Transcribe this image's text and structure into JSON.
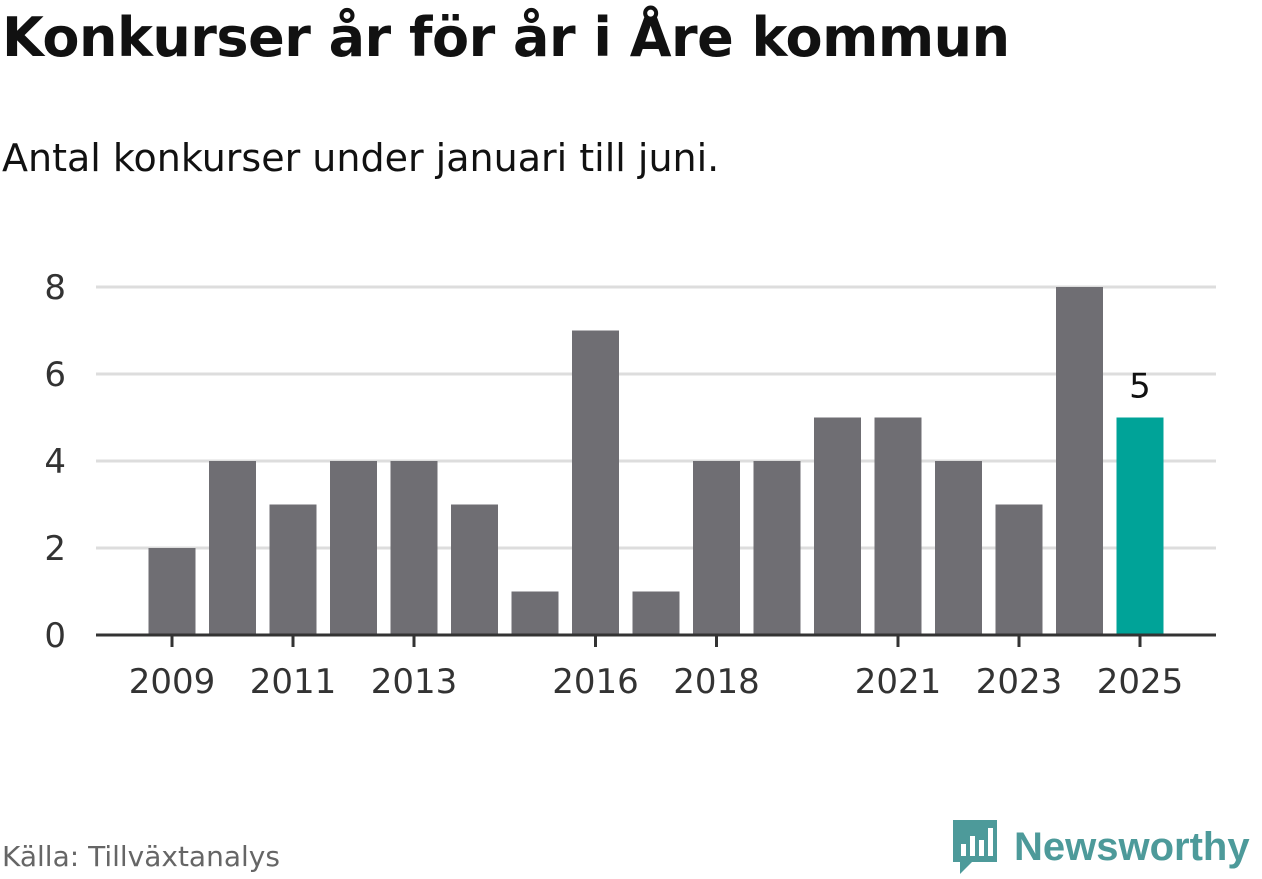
{
  "title": "Konkurser år för år i Åre kommun",
  "subtitle": "Antal konkurser under januari till juni.",
  "source": "Källa: Tillväxtanalys",
  "logo": {
    "name": "Newsworthy",
    "icon": "newsworthy-bars-icon"
  },
  "colors": {
    "bar": "#6f6e73",
    "highlight": "#00a398",
    "grid": "#dddddd",
    "axis": "#333333",
    "logo": "#4d9a9a"
  },
  "chart_data": {
    "type": "bar",
    "categories": [
      "2009",
      "2010",
      "2011",
      "2012",
      "2013",
      "2014",
      "2015",
      "2016",
      "2017",
      "2018",
      "2019",
      "2020",
      "2021",
      "2022",
      "2023",
      "2024",
      "2025"
    ],
    "values": [
      2,
      4,
      3,
      4,
      4,
      3,
      1,
      7,
      1,
      4,
      4,
      5,
      5,
      4,
      3,
      8,
      5
    ],
    "x_tick_labels": [
      "2009",
      "2011",
      "2013",
      "2016",
      "2018",
      "2021",
      "2023",
      "2025"
    ],
    "y_ticks": [
      "0",
      "2",
      "4",
      "6",
      "8"
    ],
    "ylim": [
      0,
      8
    ],
    "grid": true,
    "highlight": {
      "category": "2025",
      "label": "5"
    }
  }
}
